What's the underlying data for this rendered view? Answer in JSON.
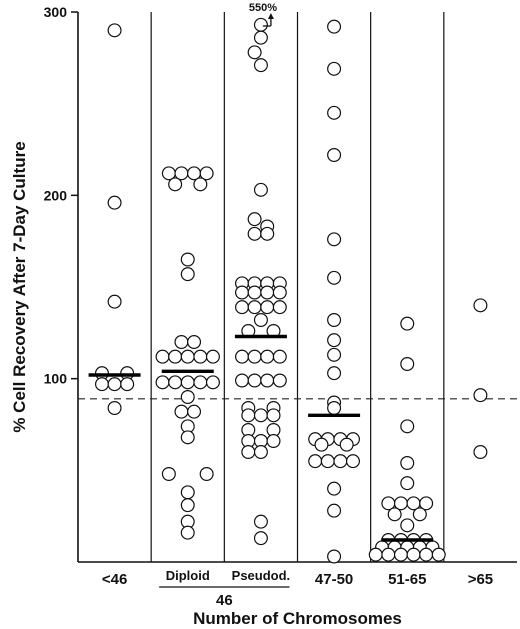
{
  "chart_data": {
    "type": "scatter",
    "ylabel": "% Cell Recovery After 7-Day Culture",
    "xlabel": "Number of Chromosomes",
    "ylim": [
      0,
      300
    ],
    "yticks": [
      "100",
      "200",
      "300"
    ],
    "ytick_values": [
      100,
      200,
      300
    ],
    "reference_line": 89,
    "group_label": "46",
    "grid": false,
    "categories": [
      {
        "label": "<46",
        "median": 102,
        "points": [
          {
            "x": 0,
            "y": 290
          },
          {
            "x": 0,
            "y": 196
          },
          {
            "x": 0,
            "y": 142
          },
          {
            "x": -1,
            "y": 103
          },
          {
            "x": 1,
            "y": 103
          },
          {
            "x": -1,
            "y": 97
          },
          {
            "x": 0,
            "y": 97
          },
          {
            "x": 1,
            "y": 97
          },
          {
            "x": 0,
            "y": 84
          }
        ]
      },
      {
        "label": "Diploid",
        "median": 104,
        "points": [
          {
            "x": -1.5,
            "y": 212
          },
          {
            "x": -0.5,
            "y": 212
          },
          {
            "x": 0.5,
            "y": 212
          },
          {
            "x": 1.5,
            "y": 212
          },
          {
            "x": -1,
            "y": 206
          },
          {
            "x": 1,
            "y": 206
          },
          {
            "x": 0,
            "y": 165
          },
          {
            "x": 0,
            "y": 157
          },
          {
            "x": -0.5,
            "y": 120
          },
          {
            "x": 0.5,
            "y": 120
          },
          {
            "x": -2,
            "y": 112
          },
          {
            "x": -1,
            "y": 112
          },
          {
            "x": 0,
            "y": 112
          },
          {
            "x": 1,
            "y": 112
          },
          {
            "x": 2,
            "y": 112
          },
          {
            "x": -2,
            "y": 98
          },
          {
            "x": -1,
            "y": 98
          },
          {
            "x": 0,
            "y": 98
          },
          {
            "x": 1,
            "y": 98
          },
          {
            "x": 2,
            "y": 98
          },
          {
            "x": 0,
            "y": 90
          },
          {
            "x": -0.5,
            "y": 82
          },
          {
            "x": 0.5,
            "y": 82
          },
          {
            "x": 0,
            "y": 74
          },
          {
            "x": 0,
            "y": 68
          },
          {
            "x": -1.5,
            "y": 48
          },
          {
            "x": 1.5,
            "y": 48
          },
          {
            "x": 0,
            "y": 38
          },
          {
            "x": 0,
            "y": 31
          },
          {
            "x": 0,
            "y": 22
          },
          {
            "x": 0,
            "y": 16
          }
        ]
      },
      {
        "label": "Pseudod.",
        "median": 123,
        "points": [
          {
            "x": 0,
            "y": 293
          },
          {
            "x": 0,
            "y": 286
          },
          {
            "x": -0.5,
            "y": 278
          },
          {
            "x": 0,
            "y": 271
          },
          {
            "x": 0,
            "y": 203
          },
          {
            "x": -0.5,
            "y": 187
          },
          {
            "x": 0.5,
            "y": 183
          },
          {
            "x": -0.5,
            "y": 179
          },
          {
            "x": 0.5,
            "y": 179
          },
          {
            "x": -1.5,
            "y": 152
          },
          {
            "x": -0.5,
            "y": 152
          },
          {
            "x": 0.5,
            "y": 152
          },
          {
            "x": 1.5,
            "y": 152
          },
          {
            "x": -1.5,
            "y": 147
          },
          {
            "x": -0.5,
            "y": 147
          },
          {
            "x": 0.5,
            "y": 147
          },
          {
            "x": 1.5,
            "y": 147
          },
          {
            "x": -1.5,
            "y": 139
          },
          {
            "x": -0.5,
            "y": 139
          },
          {
            "x": 0.5,
            "y": 139
          },
          {
            "x": 1.5,
            "y": 139
          },
          {
            "x": 0,
            "y": 132
          },
          {
            "x": -1,
            "y": 126
          },
          {
            "x": 1,
            "y": 126
          },
          {
            "x": -1.5,
            "y": 112
          },
          {
            "x": -0.5,
            "y": 112
          },
          {
            "x": 0.5,
            "y": 112
          },
          {
            "x": 1.5,
            "y": 112
          },
          {
            "x": -1.5,
            "y": 99
          },
          {
            "x": -0.5,
            "y": 99
          },
          {
            "x": 0.5,
            "y": 99
          },
          {
            "x": 1.5,
            "y": 99
          },
          {
            "x": -1,
            "y": 84
          },
          {
            "x": 1,
            "y": 84
          },
          {
            "x": -1,
            "y": 80
          },
          {
            "x": 0,
            "y": 80
          },
          {
            "x": 1,
            "y": 80
          },
          {
            "x": -1,
            "y": 72
          },
          {
            "x": 1,
            "y": 72
          },
          {
            "x": -1,
            "y": 66
          },
          {
            "x": 0,
            "y": 66
          },
          {
            "x": 1,
            "y": 66
          },
          {
            "x": -1,
            "y": 60
          },
          {
            "x": 0,
            "y": 60
          },
          {
            "x": 0,
            "y": 22
          },
          {
            "x": 0,
            "y": 13
          }
        ]
      },
      {
        "label": "47-50",
        "median": 80,
        "points": [
          {
            "x": 0,
            "y": 292
          },
          {
            "x": 0,
            "y": 269
          },
          {
            "x": 0,
            "y": 245
          },
          {
            "x": 0,
            "y": 222
          },
          {
            "x": 0,
            "y": 176
          },
          {
            "x": 0,
            "y": 155
          },
          {
            "x": 0,
            "y": 132
          },
          {
            "x": 0,
            "y": 121
          },
          {
            "x": 0,
            "y": 113
          },
          {
            "x": 0,
            "y": 103
          },
          {
            "x": 0,
            "y": 87
          },
          {
            "x": 0,
            "y": 84
          },
          {
            "x": -1.5,
            "y": 67
          },
          {
            "x": -0.5,
            "y": 67
          },
          {
            "x": 0.5,
            "y": 67
          },
          {
            "x": 1.5,
            "y": 67
          },
          {
            "x": -1,
            "y": 64
          },
          {
            "x": 1,
            "y": 64
          },
          {
            "x": -1.5,
            "y": 55
          },
          {
            "x": -0.5,
            "y": 55
          },
          {
            "x": 0.5,
            "y": 55
          },
          {
            "x": 1.5,
            "y": 55
          },
          {
            "x": 0,
            "y": 40
          },
          {
            "x": 0,
            "y": 28
          },
          {
            "x": 0,
            "y": 3
          }
        ]
      },
      {
        "label": "51-65",
        "median": 12,
        "points": [
          {
            "x": 0,
            "y": 130
          },
          {
            "x": 0,
            "y": 108
          },
          {
            "x": 0,
            "y": 74
          },
          {
            "x": 0,
            "y": 54
          },
          {
            "x": 0,
            "y": 43
          },
          {
            "x": -1.5,
            "y": 32
          },
          {
            "x": -0.5,
            "y": 32
          },
          {
            "x": 0.5,
            "y": 32
          },
          {
            "x": 1.5,
            "y": 32
          },
          {
            "x": -1,
            "y": 26
          },
          {
            "x": 1,
            "y": 26
          },
          {
            "x": 0,
            "y": 20
          },
          {
            "x": -1.5,
            "y": 12
          },
          {
            "x": -0.5,
            "y": 12
          },
          {
            "x": 0.5,
            "y": 12
          },
          {
            "x": 1.5,
            "y": 12
          },
          {
            "x": -2,
            "y": 8
          },
          {
            "x": -1,
            "y": 8
          },
          {
            "x": 0,
            "y": 8
          },
          {
            "x": 1,
            "y": 8
          },
          {
            "x": 2,
            "y": 8
          },
          {
            "x": -2.5,
            "y": 4
          },
          {
            "x": -1.5,
            "y": 4
          },
          {
            "x": -0.5,
            "y": 4
          },
          {
            "x": 0.5,
            "y": 4
          },
          {
            "x": 1.5,
            "y": 4
          },
          {
            "x": 2.5,
            "y": 4
          }
        ]
      },
      {
        "label": ">65",
        "median": null,
        "points": [
          {
            "x": 0,
            "y": 140
          },
          {
            "x": 0,
            "y": 91
          },
          {
            "x": 0,
            "y": 60
          }
        ]
      }
    ],
    "annotation": {
      "text": "550%",
      "category": "Pseudod.",
      "meaning": "one value off scale, arrow pointing up"
    }
  }
}
